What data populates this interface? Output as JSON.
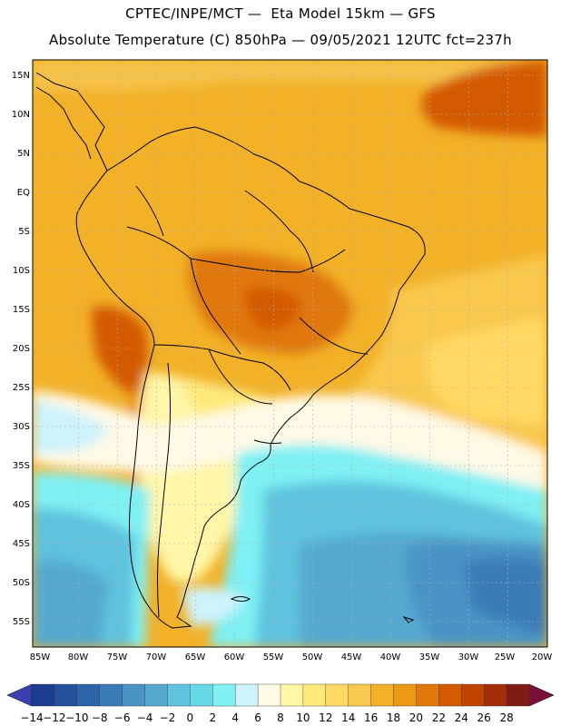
{
  "header": {
    "line1": "CPTEC/INPE/MCT —  Eta Model 15km — GFS",
    "line2": "Absolute Temperature (C) 850hPa — 09/05/2021 12UTC fct=237h"
  },
  "map": {
    "lat_labels": [
      "15N",
      "10N",
      "5N",
      "EQ",
      "5S",
      "10S",
      "15S",
      "20S",
      "25S",
      "30S",
      "35S",
      "40S",
      "45S",
      "50S",
      "55S"
    ],
    "lon_labels": [
      "85W",
      "80W",
      "75W",
      "70W",
      "65W",
      "60W",
      "55W",
      "50W",
      "45W",
      "40W",
      "35W",
      "30W",
      "25W",
      "20W"
    ]
  },
  "colorbar": {
    "labels": [
      "-14",
      "-12",
      "-10",
      "-8",
      "-6",
      "-4",
      "-2",
      "0",
      "2",
      "4",
      "6",
      "8",
      "10",
      "12",
      "14",
      "16",
      "18",
      "20",
      "22",
      "24",
      "26",
      "28"
    ],
    "colors": [
      "#1a3d8f",
      "#24519c",
      "#2d66a8",
      "#3b7cb8",
      "#4a94c4",
      "#55a9d0",
      "#5ec3de",
      "#66d8e8",
      "#7ff0f4",
      "#cdf3fb",
      "#fff9e6",
      "#fff6a8",
      "#ffe97a",
      "#ffd964",
      "#f9c84e",
      "#f2b127",
      "#eb9a12",
      "#e0780a",
      "#d45a00",
      "#c04400",
      "#a22f08",
      "#7f1d14"
    ],
    "low_color": "#3b3fb0",
    "high_color": "#7a0f3a"
  }
}
